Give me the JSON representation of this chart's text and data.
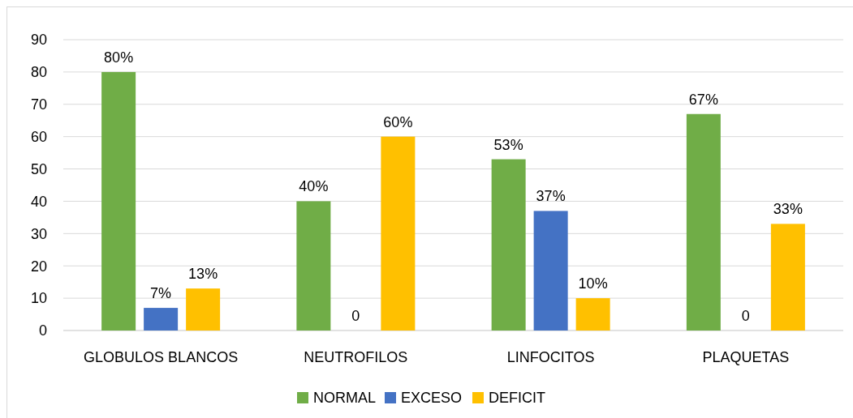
{
  "chart_data": {
    "type": "bar",
    "categories": [
      "GLOBULOS BLANCOS",
      "NEUTROFILOS",
      "LINFOCITOS",
      "PLAQUETAS"
    ],
    "series": [
      {
        "name": "NORMAL",
        "color": "#70ad47",
        "values": [
          80,
          40,
          53,
          67
        ],
        "value_labels": [
          "80%",
          "40%",
          "53%",
          "67%"
        ]
      },
      {
        "name": "EXCESO",
        "color": "#4472c4",
        "values": [
          7,
          0,
          37,
          0
        ],
        "value_labels": [
          "7%",
          "0",
          "37%",
          "0"
        ]
      },
      {
        "name": "DEFICIT",
        "color": "#ffc000",
        "values": [
          13,
          60,
          10,
          33
        ],
        "value_labels": [
          "13%",
          "60%",
          "10%",
          "33%"
        ]
      }
    ],
    "ylim": [
      0,
      90
    ],
    "yticks": [
      0,
      10,
      20,
      30,
      40,
      50,
      60,
      70,
      80,
      90
    ],
    "grid": "y",
    "legend": "bottom"
  }
}
